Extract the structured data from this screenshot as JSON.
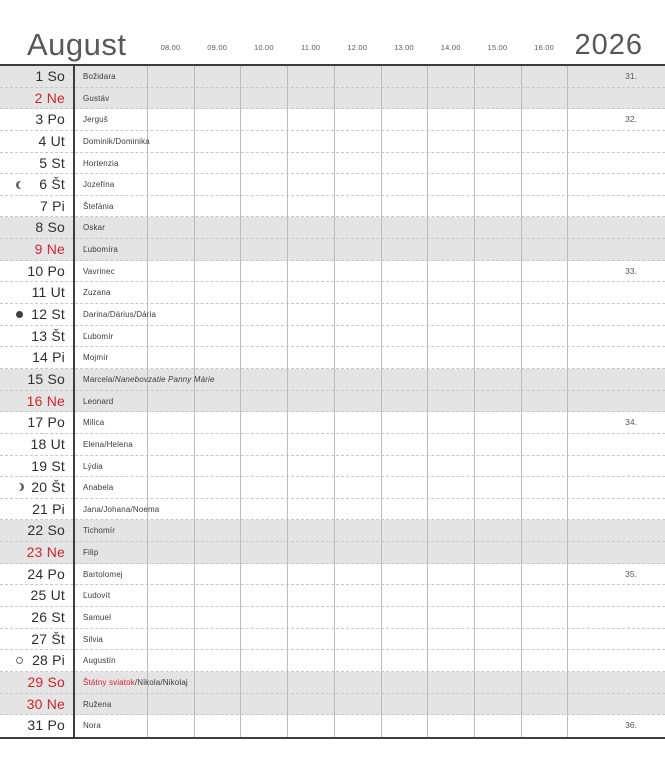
{
  "header": {
    "month": "August",
    "year": "2026",
    "time_labels": [
      "08.00",
      "09.00",
      "10.00",
      "11.00",
      "12.00",
      "13.00",
      "14.00",
      "15.00",
      "16.00"
    ]
  },
  "colors": {
    "accent_red": "#d6232e",
    "weekend_shade": "#e4e4e4",
    "grid_dark": "#3d3d3d",
    "grid_light": "#bcbcbc"
  },
  "days": [
    {
      "day": "1",
      "abbr": "So",
      "name": "Božidara",
      "weekend": true,
      "red": false,
      "week": "31."
    },
    {
      "day": "2",
      "abbr": "Ne",
      "name": "Gustáv",
      "weekend": true,
      "red": true
    },
    {
      "day": "3",
      "abbr": "Po",
      "name": "Jerguš",
      "week": "32."
    },
    {
      "day": "4",
      "abbr": "Ut",
      "name": "Dominik/Dominika"
    },
    {
      "day": "5",
      "abbr": "St",
      "name": "Hortenzia"
    },
    {
      "day": "6",
      "abbr": "Št",
      "name": "Jozefína",
      "moon": "last-quarter"
    },
    {
      "day": "7",
      "abbr": "Pi",
      "name": "Štefánia"
    },
    {
      "day": "8",
      "abbr": "So",
      "name": "Oskar",
      "weekend": true
    },
    {
      "day": "9",
      "abbr": "Ne",
      "name": "Ľubomíra",
      "weekend": true,
      "red": true
    },
    {
      "day": "10",
      "abbr": "Po",
      "name": "Vavrinec",
      "week": "33."
    },
    {
      "day": "11",
      "abbr": "Ut",
      "name": "Zuzana"
    },
    {
      "day": "12",
      "abbr": "St",
      "name": "Darina/Dárius/Dária",
      "moon": "new"
    },
    {
      "day": "13",
      "abbr": "Št",
      "name": "Ľubomír"
    },
    {
      "day": "14",
      "abbr": "Pi",
      "name": "Mojmír"
    },
    {
      "day": "15",
      "abbr": "So",
      "name": "Marcela/",
      "name_italic": "Nanebovzatie Panny Márie",
      "weekend": true
    },
    {
      "day": "16",
      "abbr": "Ne",
      "name": "Leonard",
      "weekend": true,
      "red": true
    },
    {
      "day": "17",
      "abbr": "Po",
      "name": "Milica",
      "week": "34."
    },
    {
      "day": "18",
      "abbr": "Ut",
      "name": "Elena/Helena"
    },
    {
      "day": "19",
      "abbr": "St",
      "name": "Lýdia"
    },
    {
      "day": "20",
      "abbr": "Št",
      "name": "Anabela",
      "moon": "first-quarter"
    },
    {
      "day": "21",
      "abbr": "Pi",
      "name": "Jana/Johana/Noema"
    },
    {
      "day": "22",
      "abbr": "So",
      "name": "Tichomír",
      "weekend": true
    },
    {
      "day": "23",
      "abbr": "Ne",
      "name": "Filip",
      "weekend": true,
      "red": true
    },
    {
      "day": "24",
      "abbr": "Po",
      "name": "Bartolomej",
      "week": "35."
    },
    {
      "day": "25",
      "abbr": "Ut",
      "name": "Ľudovít"
    },
    {
      "day": "26",
      "abbr": "St",
      "name": "Samuel"
    },
    {
      "day": "27",
      "abbr": "Št",
      "name": "Silvia"
    },
    {
      "day": "28",
      "abbr": "Pi",
      "name": "Augustín",
      "moon": "full"
    },
    {
      "day": "29",
      "abbr": "So",
      "name_red": "Štátny sviatok",
      "name": "/Nikola/Nikolaj",
      "weekend": true,
      "red": true
    },
    {
      "day": "30",
      "abbr": "Ne",
      "name": "Ružena",
      "weekend": true,
      "red": true
    },
    {
      "day": "31",
      "abbr": "Po",
      "name": "Nora",
      "week": "36."
    }
  ]
}
